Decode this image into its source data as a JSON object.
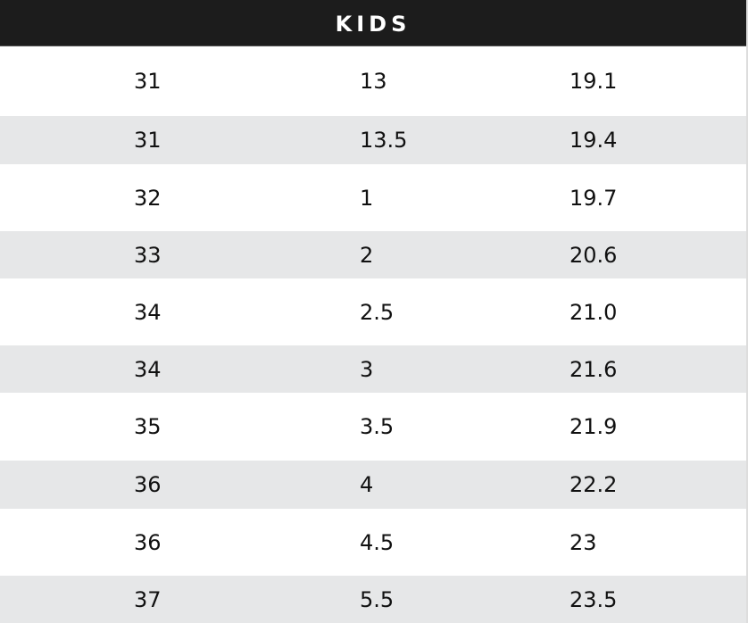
{
  "title": "KIDS",
  "rows": [
    [
      "31",
      "13",
      "19.1"
    ],
    [
      "31",
      "13.5",
      "19.4"
    ],
    [
      "32",
      "1",
      "19.7"
    ],
    [
      "33",
      "2",
      "20.6"
    ],
    [
      "34",
      "2.5",
      "21.0"
    ],
    [
      "34",
      "3",
      "21.6"
    ],
    [
      "35",
      "3.5",
      "21.9"
    ],
    [
      "36",
      "4",
      "22.2"
    ],
    [
      "36",
      "4.5",
      "23"
    ],
    [
      "37",
      "5.5",
      "23.5"
    ]
  ],
  "colors": {
    "header_bg": "#1c1c1c",
    "alt_row_bg": "#e6e7e8"
  }
}
